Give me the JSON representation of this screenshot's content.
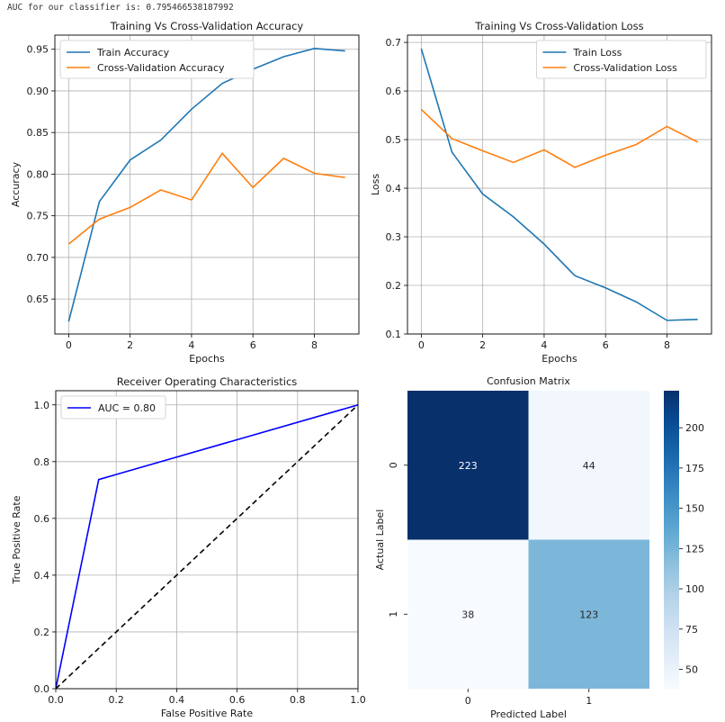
{
  "header": {
    "auc_text": "AUC for our classifier is: 0.795466538187992"
  },
  "colors": {
    "blue": "#1f77b4",
    "orange": "#ff7f0e",
    "grid": "#b0b0b0",
    "roc": "#0000ff"
  },
  "chart_data": [
    {
      "type": "line",
      "title": "Training Vs Cross-Validation Accuracy",
      "xlabel": "Epochs",
      "ylabel": "Accuracy",
      "xlim": [
        -0.45,
        9.45
      ],
      "ylim": [
        0.608,
        0.967
      ],
      "xticks": [
        0,
        2,
        4,
        6,
        8
      ],
      "yticks": [
        0.65,
        0.7,
        0.75,
        0.8,
        0.85,
        0.9,
        0.95
      ],
      "ytick_labels": [
        "0.65",
        "0.70",
        "0.75",
        "0.80",
        "0.85",
        "0.90",
        "0.95"
      ],
      "grid": true,
      "legend": "upper-left",
      "x": [
        0,
        1,
        2,
        3,
        4,
        5,
        6,
        7,
        8,
        9
      ],
      "series": [
        {
          "name": "Train Accuracy",
          "color": "#1f77b4",
          "values": [
            0.623,
            0.767,
            0.817,
            0.841,
            0.878,
            0.909,
            0.926,
            0.941,
            0.951,
            0.948
          ]
        },
        {
          "name": "Cross-Validation Accuracy",
          "color": "#ff7f0e",
          "values": [
            0.716,
            0.746,
            0.76,
            0.781,
            0.769,
            0.825,
            0.784,
            0.819,
            0.801,
            0.796
          ]
        }
      ]
    },
    {
      "type": "line",
      "title": "Training Vs Cross-Validation Loss",
      "xlabel": "Epochs",
      "ylabel": "Loss",
      "xlim": [
        -0.45,
        9.45
      ],
      "ylim": [
        0.1,
        0.715
      ],
      "xticks": [
        0,
        2,
        4,
        6,
        8
      ],
      "yticks": [
        0.1,
        0.2,
        0.3,
        0.4,
        0.5,
        0.6,
        0.7
      ],
      "ytick_labels": [
        "0.1",
        "0.2",
        "0.3",
        "0.4",
        "0.5",
        "0.6",
        "0.7"
      ],
      "grid": true,
      "legend": "upper-right",
      "x": [
        0,
        1,
        2,
        3,
        4,
        5,
        6,
        7,
        8,
        9
      ],
      "series": [
        {
          "name": "Train Loss",
          "color": "#1f77b4",
          "values": [
            0.687,
            0.474,
            0.388,
            0.341,
            0.285,
            0.22,
            0.195,
            0.166,
            0.128,
            0.13
          ]
        },
        {
          "name": "Cross-Validation Loss",
          "color": "#ff7f0e",
          "values": [
            0.562,
            0.502,
            0.477,
            0.453,
            0.479,
            0.443,
            0.468,
            0.49,
            0.527,
            0.495
          ]
        }
      ]
    },
    {
      "type": "line",
      "title": "Receiver Operating Characteristics",
      "xlabel": "False Positive Rate",
      "ylabel": "True Positive Rate",
      "xlim": [
        0,
        1
      ],
      "ylim": [
        0,
        1.05
      ],
      "xticks": [
        0,
        0.2,
        0.4,
        0.6,
        0.8,
        1.0
      ],
      "xtick_labels": [
        "0.0",
        "0.2",
        "0.4",
        "0.6",
        "0.8",
        "1.0"
      ],
      "yticks": [
        0,
        0.2,
        0.4,
        0.6,
        0.8,
        1.0
      ],
      "ytick_labels": [
        "0.0",
        "0.2",
        "0.4",
        "0.6",
        "0.8",
        "1.0"
      ],
      "grid": true,
      "legend": "upper-left",
      "series": [
        {
          "name": "AUC = 0.80",
          "color": "#0000ff",
          "x": [
            0,
            0.142,
            1.0
          ],
          "values": [
            0,
            0.737,
            1.0
          ]
        },
        {
          "name": "",
          "color": "#000000",
          "dashed": true,
          "x": [
            0,
            1
          ],
          "values": [
            0,
            1
          ]
        }
      ]
    },
    {
      "type": "heatmap",
      "title": "Confusion Matrix",
      "xlabel": "Predicted Label",
      "ylabel": "Actual Label",
      "xticks": [
        "0",
        "1"
      ],
      "yticks": [
        "0",
        "1"
      ],
      "values": [
        [
          223,
          44
        ],
        [
          38,
          123
        ]
      ],
      "colorscale": "Blues",
      "vmin": 38,
      "vmax": 223,
      "colorbar_ticks": [
        50,
        75,
        100,
        125,
        150,
        175,
        200
      ]
    }
  ]
}
